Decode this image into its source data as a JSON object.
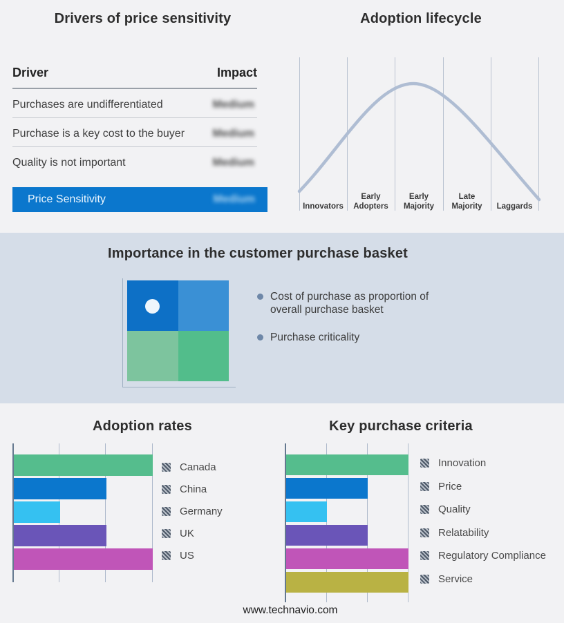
{
  "colors": {
    "accent_blue": "#0b77cd",
    "curve": "#afbdd3",
    "quad_tl": "#0d70c6",
    "quad_tr": "#3a90d5",
    "quad_bl": "#7dc49e",
    "quad_br": "#52bd8b"
  },
  "basket_panel": {
    "title": "Importance in the customer purchase basket",
    "bullets": [
      "Cost of purchase as proportion of overall purchase basket",
      "Purchase criticality"
    ]
  },
  "footer": {
    "website": "www.technavio.com"
  },
  "chart_data": [
    {
      "type": "table",
      "title": "Drivers of price sensitivity",
      "columns": [
        "Driver",
        "Impact"
      ],
      "rows": [
        [
          "Purchases are undifferentiated",
          "Medium"
        ],
        [
          "Purchase is a key cost to the buyer",
          "Medium"
        ],
        [
          "Quality is not important",
          "Medium"
        ]
      ],
      "highlight_row": [
        "Price Sensitivity",
        "Medium"
      ],
      "impact_values_obscured": true
    },
    {
      "type": "line",
      "title": "Adoption lifecycle",
      "categories": [
        "Innovators",
        "Early Adopters",
        "Early Majority",
        "Late Majority",
        "Laggards"
      ],
      "curve_shape": "bell",
      "peak_category": "Early Majority",
      "y_normalized": [
        0.05,
        0.55,
        1.0,
        0.5,
        0.02
      ],
      "grid": true
    },
    {
      "type": "bar",
      "orientation": "horizontal",
      "title": "Adoption rates",
      "categories": [
        "Canada",
        "China",
        "Germany",
        "UK",
        "US"
      ],
      "values": [
        3,
        2,
        1,
        2,
        3
      ],
      "xlim": [
        0,
        3
      ],
      "grid": true,
      "legend_position": "right",
      "colors": [
        "#55bd8d",
        "#0b77cd",
        "#35c1f1",
        "#6a55b8",
        "#c055b8"
      ]
    },
    {
      "type": "bar",
      "orientation": "horizontal",
      "title": "Key purchase criteria",
      "categories": [
        "Innovation",
        "Price",
        "Quality",
        "Relatability",
        "Regulatory Compliance",
        "Service"
      ],
      "values": [
        3,
        2,
        1,
        2,
        3,
        3
      ],
      "xlim": [
        0,
        3
      ],
      "grid": true,
      "legend_position": "right",
      "colors": [
        "#55bd8d",
        "#0b77cd",
        "#35c1f1",
        "#6a55b8",
        "#c055b8",
        "#b9b244"
      ]
    }
  ]
}
